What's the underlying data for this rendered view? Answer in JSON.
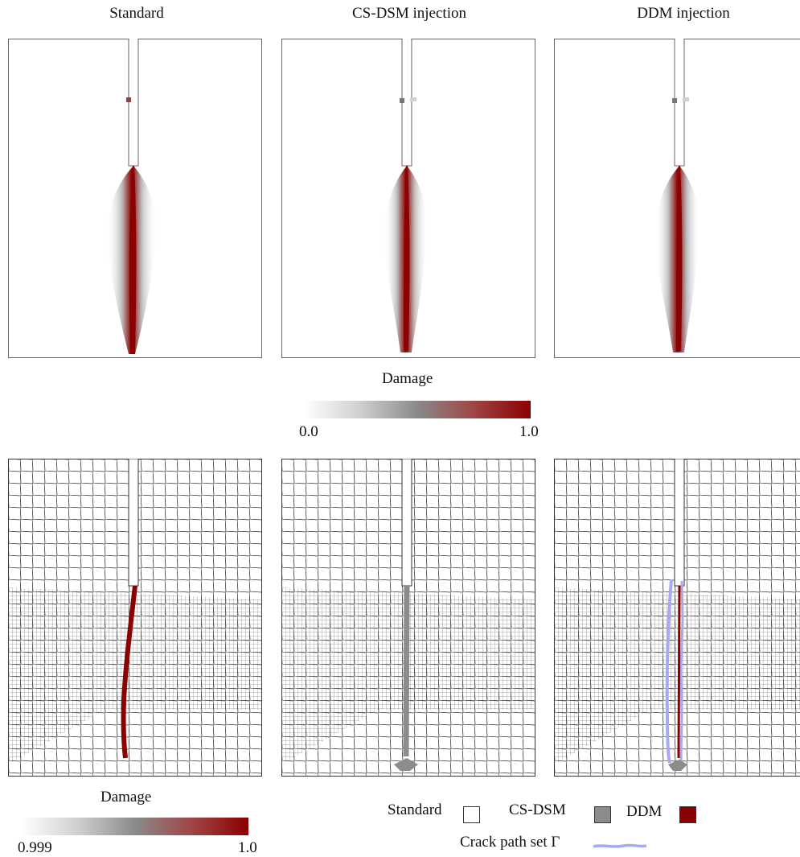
{
  "titles": {
    "standard": "Standard",
    "csdsm": "CS-DSM injection",
    "ddm": "DDM injection"
  },
  "colorbar_top": {
    "label": "Damage",
    "min": "0.0",
    "max": "1.0"
  },
  "colorbar_bottom": {
    "label": "Damage",
    "min": "0.999",
    "max": "1.0"
  },
  "legend": {
    "standard": "Standard",
    "csdsm": "CS-DSM",
    "ddm": "DDM",
    "crack": "Crack path set Γ",
    "colors": {
      "standard": "#ffffff",
      "csdsm": "#8c8c8c",
      "ddm": "#8b0000",
      "crack": "#a9a9f2"
    }
  },
  "colors": {
    "damage_low": "#ffffff",
    "damage_mid": "#8a8a8a",
    "damage_high": "#8b0000",
    "mesh": "#222222"
  }
}
